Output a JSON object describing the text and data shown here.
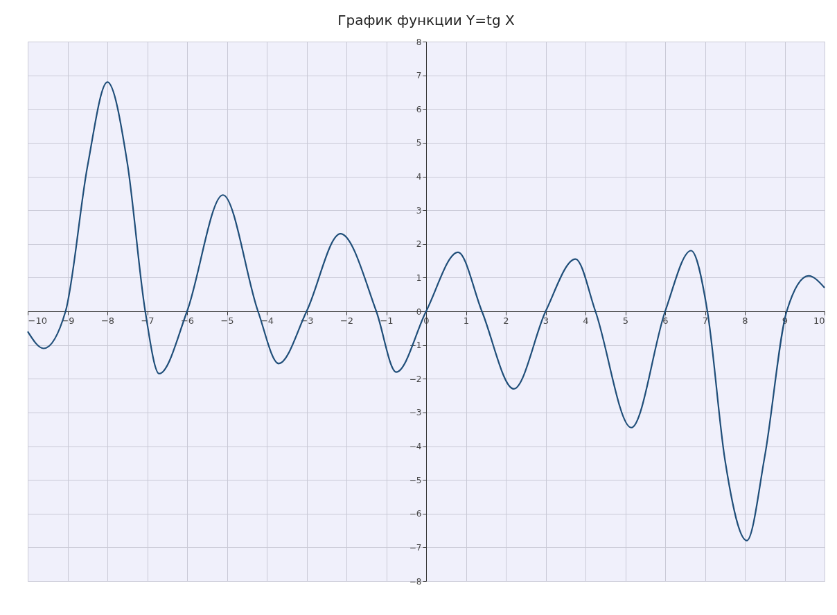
{
  "chart_data": {
    "type": "line",
    "title": "График функции Y=tg X",
    "series": [
      {
        "color": "#1f4e79",
        "x": [
          -10,
          -9.6,
          -9.05,
          -8.5,
          -8,
          -7.5,
          -7.05,
          -6.7,
          -6.0,
          -5.1,
          -4.22,
          -3.7,
          -3.0,
          -2.15,
          -1.25,
          -0.75,
          0,
          0.8,
          1.4,
          2.2,
          3.0,
          3.75,
          4.25,
          5.15,
          6.0,
          6.65,
          7.06,
          7.5,
          8.05,
          8.5,
          9.05,
          9.6,
          10
        ],
        "values": [
          -0.6,
          -1.1,
          0,
          4.3,
          6.8,
          4.4,
          0,
          -1.85,
          0,
          3.45,
          0,
          -1.55,
          0,
          2.3,
          0,
          -1.8,
          0,
          1.75,
          0,
          -2.3,
          0,
          1.55,
          0,
          -3.45,
          0,
          1.8,
          0,
          -4.4,
          -6.8,
          -4.3,
          0,
          1.05,
          0.7
        ]
      }
    ],
    "xlim": [
      -10,
      10
    ],
    "ylim": [
      -8,
      8
    ],
    "xticks": [
      -10,
      -9,
      -8,
      -7,
      -6,
      -5,
      -4,
      -3,
      -2,
      -1,
      0,
      1,
      2,
      3,
      4,
      5,
      6,
      7,
      8,
      9,
      10
    ],
    "yticks": [
      -8,
      -7,
      -6,
      -5,
      -4,
      -3,
      -2,
      -1,
      0,
      1,
      2,
      3,
      4,
      5,
      6,
      7,
      8
    ],
    "grid": true,
    "marker": "none",
    "line_style": "solid"
  }
}
